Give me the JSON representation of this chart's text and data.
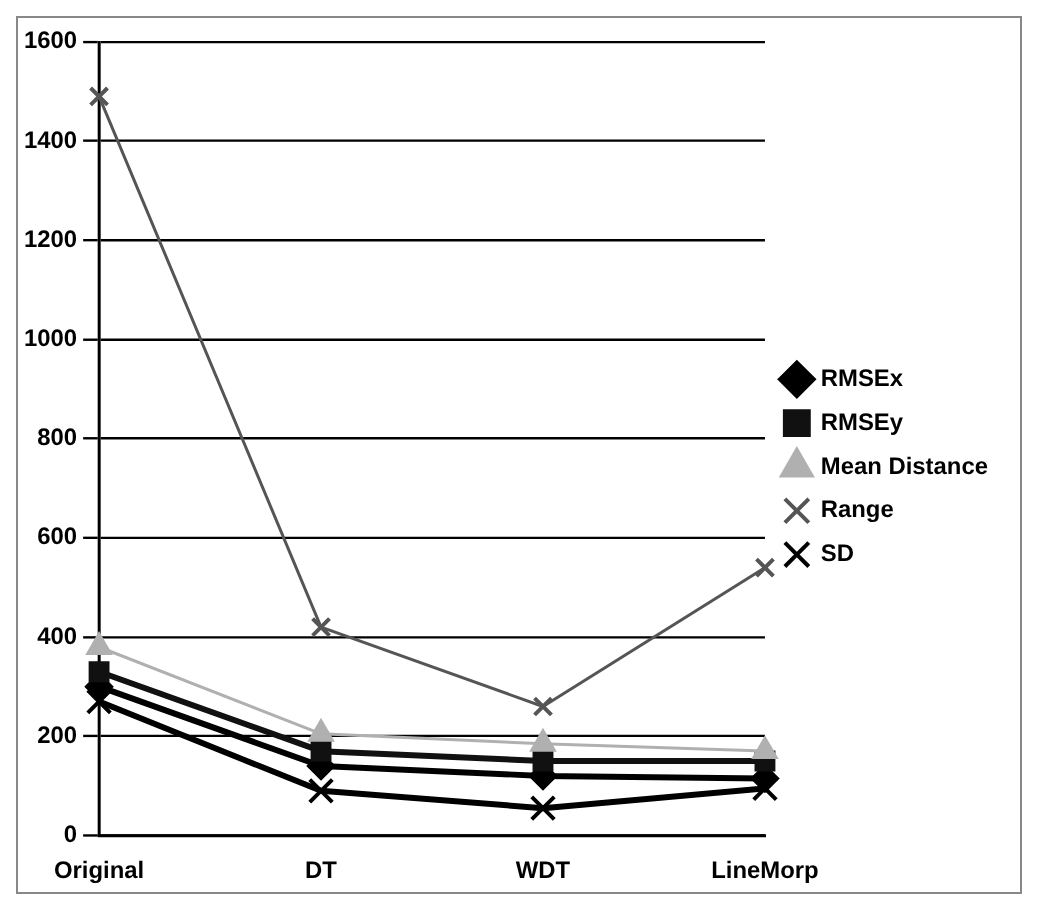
{
  "chart_data": {
    "type": "line",
    "categories": [
      "Original",
      "DT",
      "WDT",
      "LineMorp"
    ],
    "series": [
      {
        "name": "RMSEx",
        "color": "#000000",
        "marker": "diamond",
        "values": [
          300,
          140,
          120,
          115
        ]
      },
      {
        "name": "RMSEy",
        "color": "#111111",
        "marker": "square",
        "values": [
          330,
          170,
          150,
          150
        ]
      },
      {
        "name": "Mean Distance",
        "color": "#b0b0b0",
        "marker": "triangle",
        "values": [
          380,
          205,
          185,
          170
        ]
      },
      {
        "name": "Range",
        "color": "#555555",
        "marker": "cross",
        "values": [
          1490,
          420,
          260,
          540
        ]
      },
      {
        "name": "SD",
        "color": "#000000",
        "marker": "cross",
        "values": [
          270,
          90,
          55,
          95
        ]
      }
    ],
    "ylim": [
      0,
      1600
    ],
    "yticks": [
      0,
      200,
      400,
      600,
      800,
      1000,
      1200,
      1400,
      1600
    ],
    "grid": "y",
    "legend": "right"
  }
}
